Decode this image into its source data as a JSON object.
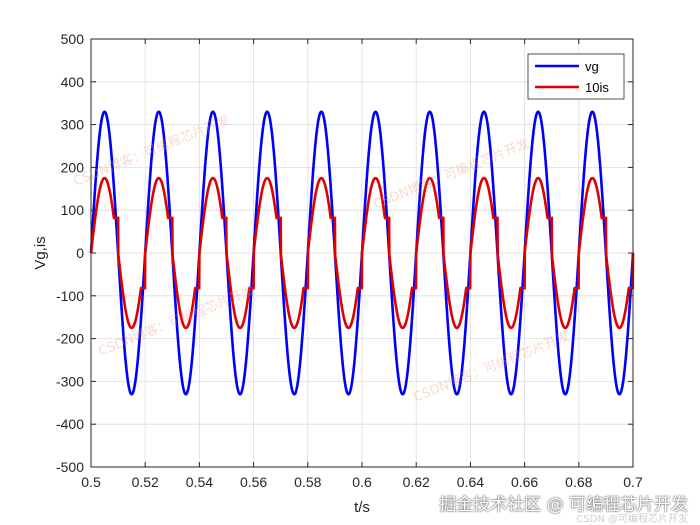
{
  "chart_data": {
    "type": "line",
    "title": "",
    "xlabel": "t/s",
    "ylabel": "Vg,is",
    "xlim": [
      0.5,
      0.7
    ],
    "ylim": [
      -500,
      500
    ],
    "x_ticks": [
      "0.5",
      "0.52",
      "0.54",
      "0.56",
      "0.58",
      "0.6",
      "0.62",
      "0.64",
      "0.66",
      "0.68",
      "0.7"
    ],
    "y_ticks": [
      "500",
      "400",
      "300",
      "200",
      "100",
      "0",
      "-100",
      "-200",
      "-300",
      "-400",
      "-500"
    ],
    "grid": true,
    "legend_position": "top-right",
    "frequency_hz": 50,
    "series": [
      {
        "name": "vg",
        "color": "#0000ff",
        "waveform": "sine",
        "amplitude": 330,
        "phase_deg": 0
      },
      {
        "name": "10is",
        "color": "#ff0000",
        "waveform": "sine with dead-zone steps near zero crossings",
        "amplitude": 175,
        "phase_deg": 0
      }
    ]
  },
  "watermarks": {
    "overlay": "CSDN博客：可编程芯片开发",
    "footer_main": "掘金技术社区 @ 可编程芯片开发",
    "footer_sub": "CSDN @可编程芯片开发"
  }
}
